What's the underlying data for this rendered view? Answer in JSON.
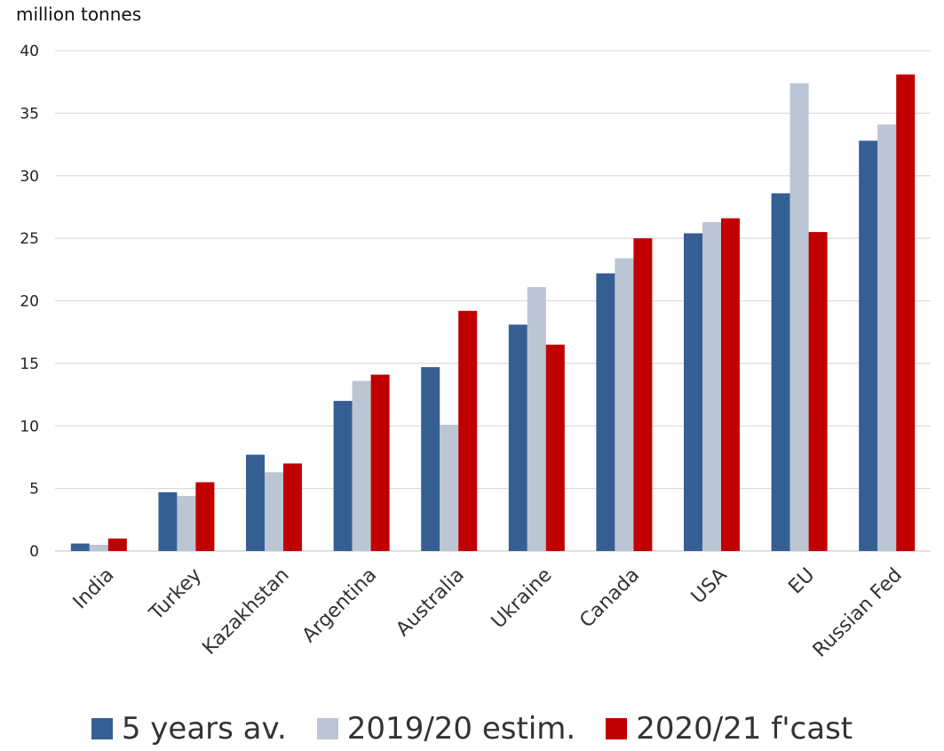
{
  "chart_data": {
    "type": "bar",
    "unit_label": "million tonnes",
    "categories": [
      "India",
      "Turkey",
      "Kazakhstan",
      "Argentina",
      "Australia",
      "Ukraine",
      "Canada",
      "USA",
      "EU",
      "Russian Fed"
    ],
    "series": [
      {
        "name": "5 years av.",
        "color": "#355f93",
        "values": [
          0.6,
          4.7,
          7.7,
          12.0,
          14.7,
          18.1,
          22.2,
          25.4,
          28.6,
          32.8
        ]
      },
      {
        "name": "2019/20 estim.",
        "color": "#bcc5d3",
        "values": [
          0.5,
          4.4,
          6.3,
          13.6,
          10.1,
          21.1,
          23.4,
          26.3,
          37.4,
          34.1
        ]
      },
      {
        "name": "2020/21 f'cast",
        "color": "#c00000",
        "values": [
          1.0,
          5.5,
          7.0,
          14.1,
          19.2,
          16.5,
          25.0,
          26.6,
          25.5,
          38.1
        ]
      }
    ],
    "ylim": [
      0,
      40
    ],
    "yticks": [
      0,
      5,
      10,
      15,
      20,
      25,
      30,
      35,
      40
    ],
    "grid": true,
    "legend_position": "bottom"
  }
}
